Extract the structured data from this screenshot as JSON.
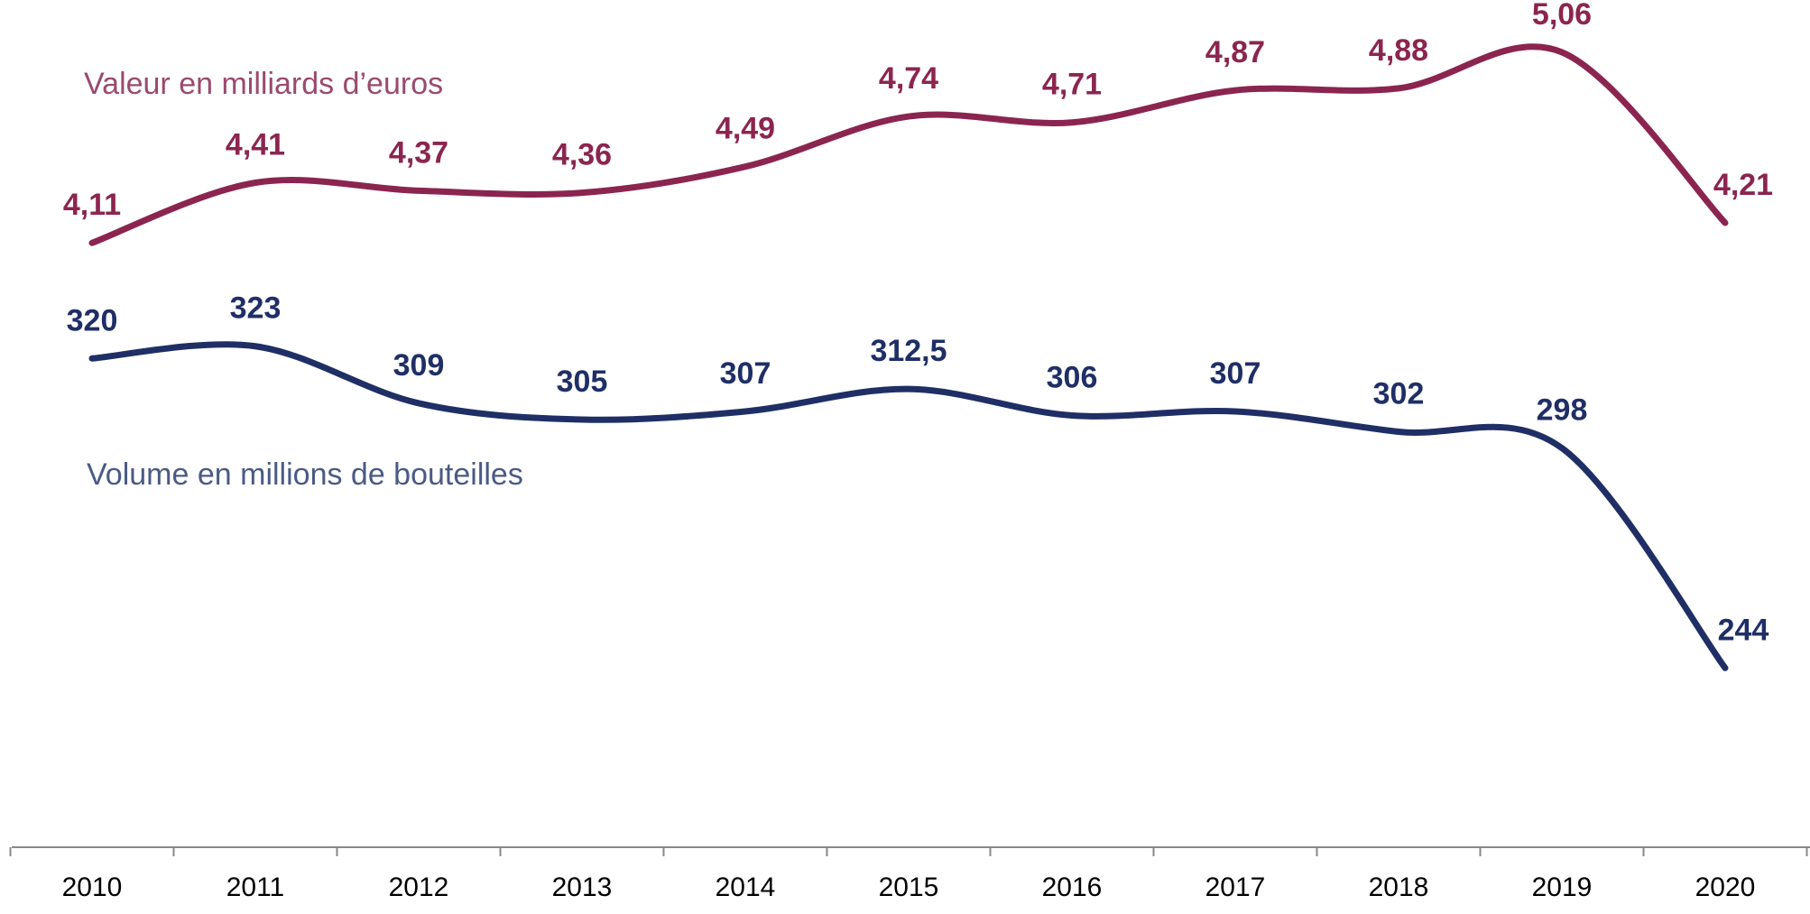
{
  "chart_data": {
    "type": "line",
    "categories": [
      "2010",
      "2011",
      "2012",
      "2013",
      "2014",
      "2015",
      "2016",
      "2017",
      "2018",
      "2019",
      "2020"
    ],
    "series": [
      {
        "name": "Valeur en milliards d’euros",
        "color": "#8b2550",
        "axis": "y2",
        "values": [
          4.11,
          4.41,
          4.37,
          4.36,
          4.49,
          4.74,
          4.71,
          4.87,
          4.88,
          5.06,
          4.21
        ],
        "value_labels": [
          "4,11",
          "4,41",
          "4,37",
          "4,36",
          "4,49",
          "4,74",
          "4,71",
          "4,87",
          "4,88",
          "5,06",
          "4,21"
        ]
      },
      {
        "name": "Volume en millions de bouteilles",
        "color": "#1f2f66",
        "values": [
          320,
          323,
          309,
          305,
          307,
          312.5,
          306,
          307,
          302,
          298,
          244
        ],
        "value_labels": [
          "320",
          "323",
          "309",
          "305",
          "307",
          "312,5",
          "306",
          "307",
          "302",
          "298",
          "244"
        ]
      }
    ],
    "ylim": [
      200,
      408
    ],
    "y2lim": [
      1.1,
      5.32
    ]
  }
}
